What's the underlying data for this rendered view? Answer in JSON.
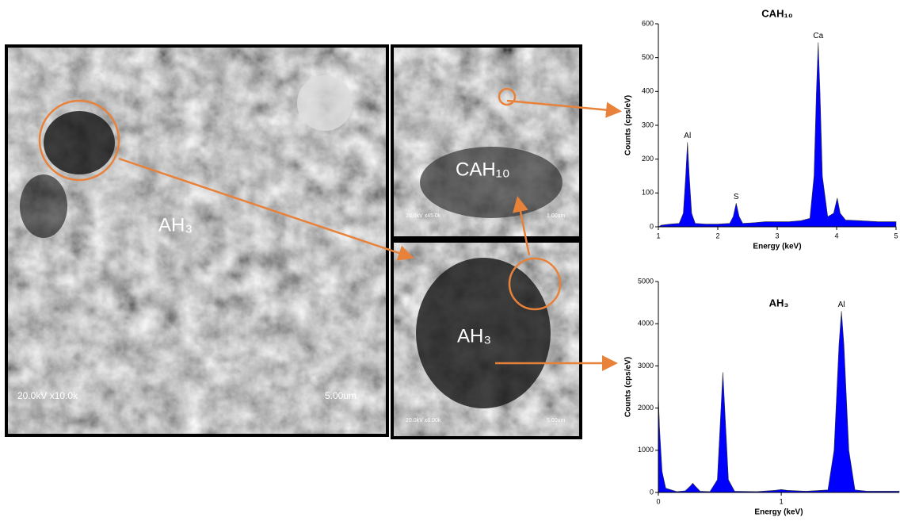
{
  "images": [
    {
      "phase_label": "AH₃",
      "info": "20.0kV x10.0k",
      "scale": "5.00um"
    },
    {
      "phase_label": "CAH₁₀",
      "info": "20.0kV x45.0k",
      "scale": "1.00um"
    },
    {
      "phase_label": "AH₃",
      "info": "20.0kV x8.00k",
      "scale": "5.00um"
    }
  ],
  "chart_data": [
    {
      "type": "area",
      "title": "CAH₁₀",
      "x_label": "Energy (keV)",
      "y_label": "Counts (cps/eV)",
      "color": "#0000ff",
      "x": [
        1.0,
        1.05,
        1.2,
        1.35,
        1.42,
        1.46,
        1.49,
        1.52,
        1.56,
        1.62,
        1.8,
        2.0,
        2.2,
        2.26,
        2.31,
        2.36,
        2.42,
        2.6,
        2.8,
        3.0,
        3.2,
        3.4,
        3.55,
        3.62,
        3.66,
        3.69,
        3.72,
        3.76,
        3.85,
        3.95,
        4.01,
        4.06,
        4.15,
        4.4,
        4.7,
        5.0
      ],
      "values": [
        0,
        5,
        8,
        10,
        40,
        150,
        250,
        150,
        40,
        10,
        8,
        8,
        10,
        30,
        70,
        30,
        10,
        12,
        15,
        15,
        15,
        18,
        25,
        150,
        400,
        545,
        400,
        150,
        30,
        40,
        85,
        40,
        20,
        18,
        15,
        15
      ],
      "xlim": [
        1,
        5
      ],
      "xticks": [
        1,
        2,
        3,
        4,
        5
      ],
      "ylim": [
        0,
        600
      ],
      "yticks": [
        0,
        100,
        200,
        300,
        400,
        500,
        600
      ],
      "annotations": [
        {
          "text": "Al",
          "x": 1.49,
          "y": 250
        },
        {
          "text": "S",
          "x": 2.31,
          "y": 70
        },
        {
          "text": "Ca",
          "x": 3.69,
          "y": 545
        }
      ]
    },
    {
      "type": "area",
      "title": "AH₃",
      "x_label": "Energy (keV)",
      "y_label": "Counts (cps/eV)",
      "color": "#0000ff",
      "x": [
        0,
        0.01,
        0.03,
        0.06,
        0.15,
        0.22,
        0.26,
        0.28,
        0.3,
        0.34,
        0.42,
        0.48,
        0.51,
        0.525,
        0.54,
        0.57,
        0.62,
        0.8,
        0.95,
        1.0,
        1.05,
        1.2,
        1.38,
        1.43,
        1.47,
        1.49,
        1.51,
        1.55,
        1.6,
        1.7,
        1.96
      ],
      "values": [
        2300,
        1500,
        500,
        100,
        20,
        40,
        150,
        220,
        150,
        30,
        20,
        300,
        2000,
        2850,
        2000,
        300,
        30,
        20,
        50,
        70,
        50,
        30,
        60,
        1000,
        3500,
        4300,
        3500,
        1000,
        60,
        30,
        30
      ],
      "xlim": [
        0,
        1.96
      ],
      "xticks": [
        0,
        1
      ],
      "ylim": [
        0,
        5000
      ],
      "yticks": [
        0,
        1000,
        2000,
        3000,
        4000,
        5000
      ],
      "annotations": [
        {
          "text": "Al",
          "x": 1.49,
          "y": 4300
        }
      ]
    }
  ]
}
